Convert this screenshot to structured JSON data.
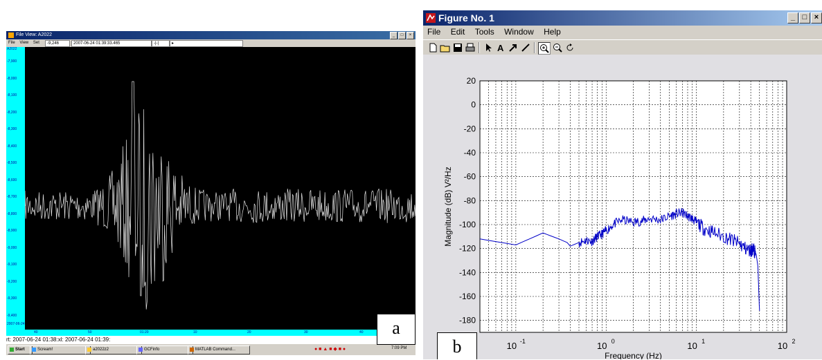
{
  "panel_a": {
    "title": "File View: A2022",
    "menu": [
      "File",
      "View",
      "Set"
    ],
    "readout_value": "-9,246",
    "readout_time": "2007-06-24 01:39:33.465",
    "stream_label": "A2022",
    "y_ticks": [
      "-7,900",
      "-8,000",
      "-8,100",
      "-8,200",
      "-8,300",
      "-8,400",
      "-8,500",
      "-8,600",
      "-8,700",
      "-8,800",
      "-8,900",
      "-9,000",
      "-9,100",
      "-9,200",
      "-9,300",
      "-9,400"
    ],
    "x_ticks": [
      "40",
      "50",
      "01:20",
      "10",
      "20",
      "30",
      "40"
    ],
    "date_corner": "2007-06-24",
    "status": "rt:  2007-06-24 01:38:xl:  2007-06-24 01:39:",
    "taskbar": {
      "start": "Start",
      "items": [
        "Scream!",
        "a2022z2",
        "GCFinfo",
        "MATLAB Command..."
      ],
      "clock": "7:09 PM"
    },
    "label": "a"
  },
  "panel_b": {
    "title": "Figure No. 1",
    "window_buttons": [
      "_",
      "□",
      "×"
    ],
    "menu": [
      "File",
      "Edit",
      "Tools",
      "Window",
      "Help"
    ],
    "toolbar_icons": [
      "new-icon",
      "open-icon",
      "save-icon",
      "print-icon",
      "arrow-select-icon",
      "text-icon",
      "arrow-icon",
      "line-icon",
      "zoom-in-icon",
      "zoom-out-icon",
      "rotate-icon"
    ],
    "label": "b"
  },
  "chart_data": {
    "type": "line",
    "xlabel": "Frequency (Hz)",
    "ylabel": "Magnitude (dB)  V²/Hz",
    "x_scale": "log",
    "xlim": [
      0.04,
      100
    ],
    "ylim": [
      -190,
      20
    ],
    "y_ticks": [
      20,
      0,
      -20,
      -40,
      -60,
      -80,
      -100,
      -120,
      -140,
      -160,
      -180
    ],
    "x_ticks": [
      {
        "base": "10",
        "exp": "-1"
      },
      {
        "base": "10",
        "exp": "0"
      },
      {
        "base": "10",
        "exp": "1"
      },
      {
        "base": "10",
        "exp": "2"
      }
    ],
    "grid": true,
    "line_color": "#0000c8",
    "series": [
      {
        "x": [
          0.04,
          0.1,
          0.2,
          0.3,
          0.37,
          0.4,
          0.5,
          0.6,
          0.7,
          0.8,
          0.9,
          1.0,
          1.2,
          1.5,
          2,
          2.5,
          3,
          4,
          5,
          6,
          7,
          8,
          9,
          10,
          12,
          15,
          20,
          25,
          30,
          35,
          40,
          42,
          44,
          46,
          48,
          49,
          50
        ],
        "y": [
          -112,
          -117,
          -107,
          -112,
          -115,
          -118,
          -115,
          -113,
          -114,
          -110,
          -108,
          -105,
          -100,
          -96,
          -98,
          -97,
          -95,
          -96,
          -93,
          -91,
          -90,
          -93,
          -95,
          -98,
          -103,
          -106,
          -110,
          -113,
          -116,
          -120,
          -122,
          -120,
          -122,
          -125,
          -135,
          -155,
          -172
        ]
      }
    ]
  }
}
